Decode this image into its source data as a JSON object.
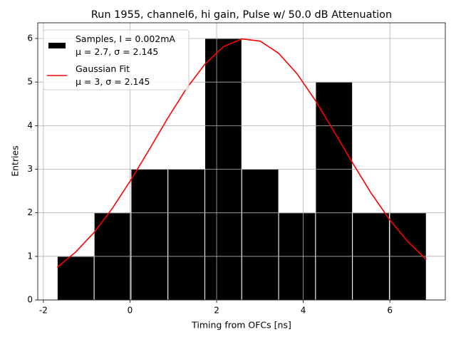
{
  "chart_data": {
    "type": "histogram",
    "title": "Run 1955, channel6, hi gain, Pulse w/ 50.0 dB Attenuation",
    "xlabel": "Timing from OFCs [ns]",
    "ylabel": "Entries",
    "xlim": [
      -2.13,
      7.28
    ],
    "ylim": [
      0,
      6.36
    ],
    "xticks": [
      -2,
      0,
      2,
      4,
      6
    ],
    "yticks": [
      0,
      1,
      2,
      3,
      4,
      5,
      6
    ],
    "grid": true,
    "legend": "upper left",
    "series": [
      {
        "name": "Samples, I = 0.002mA\nμ = 2.7, σ = 2.145",
        "type": "histogram",
        "color": "#000000",
        "bins": [
          -1.68,
          -0.828,
          0.024,
          0.876,
          1.728,
          2.58,
          3.432,
          4.284,
          5.136,
          5.988,
          6.84
        ],
        "values": [
          1,
          2,
          3,
          3,
          6,
          3,
          2,
          5,
          2,
          2
        ]
      },
      {
        "name": "Gaussian Fit\nμ = 3, σ = 2.145",
        "type": "line",
        "color": "#ff0000",
        "x": [
          -1.68,
          -1.254,
          -0.828,
          -0.402,
          0.024,
          0.45,
          0.876,
          1.302,
          1.728,
          2.154,
          2.58,
          3.006,
          3.432,
          3.858,
          4.284,
          4.71,
          5.136,
          5.562,
          5.988,
          6.414,
          6.84
        ],
        "values": [
          0.75,
          1.1,
          1.55,
          2.11,
          2.76,
          3.46,
          4.18,
          4.85,
          5.41,
          5.81,
          5.99,
          5.94,
          5.66,
          5.19,
          4.57,
          3.87,
          3.15,
          2.46,
          1.85,
          1.34,
          0.93
        ]
      }
    ]
  }
}
